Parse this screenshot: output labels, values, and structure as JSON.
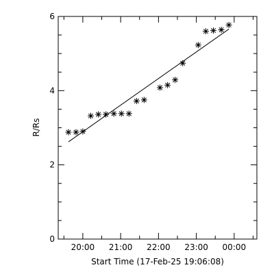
{
  "chart_data": {
    "type": "scatter",
    "xlabel": "Start Time (17-Feb-25 19:06:08)",
    "ylabel": "R/Rs",
    "x_unit": "hours",
    "xlim": [
      19.35,
      24.6
    ],
    "ylim": [
      0,
      6
    ],
    "x_ticks": [
      {
        "value": 19.5,
        "label": ""
      },
      {
        "value": 20,
        "label": "20:00"
      },
      {
        "value": 20.5,
        "label": ""
      },
      {
        "value": 21,
        "label": "21:00"
      },
      {
        "value": 21.5,
        "label": ""
      },
      {
        "value": 22,
        "label": "22:00"
      },
      {
        "value": 22.5,
        "label": ""
      },
      {
        "value": 23,
        "label": "23:00"
      },
      {
        "value": 23.5,
        "label": ""
      },
      {
        "value": 24,
        "label": "00:00"
      },
      {
        "value": 24.5,
        "label": ""
      }
    ],
    "y_ticks": [
      {
        "value": 0,
        "label": "0"
      },
      {
        "value": 2,
        "label": "2"
      },
      {
        "value": 4,
        "label": "4"
      },
      {
        "value": 6,
        "label": "6"
      }
    ],
    "y_minor_step": 0.5,
    "marker": "asterisk",
    "grid": false,
    "points": [
      {
        "x": 19.62,
        "y": 2.88
      },
      {
        "x": 19.82,
        "y": 2.88
      },
      {
        "x": 20.0,
        "y": 2.9
      },
      {
        "x": 20.21,
        "y": 3.32
      },
      {
        "x": 20.41,
        "y": 3.36
      },
      {
        "x": 20.61,
        "y": 3.36
      },
      {
        "x": 20.82,
        "y": 3.38
      },
      {
        "x": 21.02,
        "y": 3.38
      },
      {
        "x": 21.22,
        "y": 3.38
      },
      {
        "x": 21.42,
        "y": 3.72
      },
      {
        "x": 21.62,
        "y": 3.75
      },
      {
        "x": 22.04,
        "y": 4.08
      },
      {
        "x": 22.24,
        "y": 4.15
      },
      {
        "x": 22.44,
        "y": 4.29
      },
      {
        "x": 22.64,
        "y": 4.74
      },
      {
        "x": 23.05,
        "y": 5.23
      },
      {
        "x": 23.25,
        "y": 5.6
      },
      {
        "x": 23.45,
        "y": 5.62
      },
      {
        "x": 23.66,
        "y": 5.64
      },
      {
        "x": 23.86,
        "y": 5.77
      }
    ],
    "fit_line": {
      "x_start": 19.62,
      "y_start": 2.62,
      "x_end": 23.86,
      "y_end": 5.66
    }
  }
}
